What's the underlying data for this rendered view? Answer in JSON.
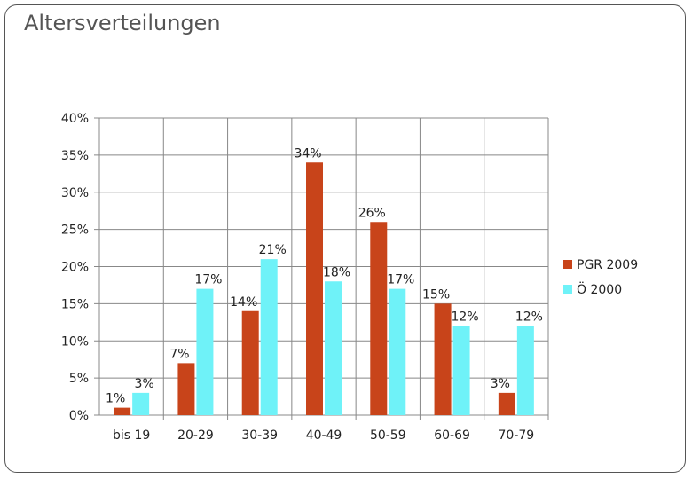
{
  "chart_data": {
    "type": "bar",
    "title": "Altersverteilungen",
    "categories": [
      "bis 19",
      "20-29",
      "30-39",
      "40-49",
      "50-59",
      "60-69",
      "70-79"
    ],
    "series": [
      {
        "name": "PGR 2009",
        "color": "#c8441a",
        "values": [
          1,
          7,
          14,
          34,
          26,
          15,
          3
        ],
        "labels": [
          "1%",
          "7%",
          "14%",
          "34%",
          "26%",
          "15%",
          "3%"
        ]
      },
      {
        "name": "Ö 2000",
        "color": "#6ff2f8",
        "values": [
          3,
          17,
          21,
          18,
          17,
          12,
          12
        ],
        "labels": [
          "3%",
          "17%",
          "21%",
          "18%",
          "17%",
          "12%",
          "12%"
        ]
      }
    ],
    "ylim": [
      0,
      40
    ],
    "yticks": [
      "0%",
      "5%",
      "10%",
      "15%",
      "20%",
      "25%",
      "30%",
      "35%",
      "40%"
    ],
    "grid": true,
    "legend": "right",
    "xlabel": "",
    "ylabel": ""
  }
}
